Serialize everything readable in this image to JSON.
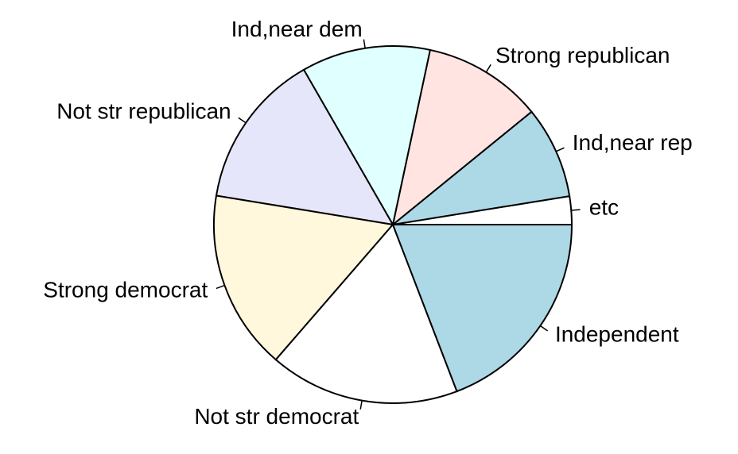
{
  "chart_data": {
    "type": "pie",
    "categories": [
      "etc",
      "Ind,near rep",
      "Strong republican",
      "Ind,near dem",
      "Not str republican",
      "Strong democrat",
      "Not str democrat",
      "Independent"
    ],
    "values": [
      548,
      1791,
      2314,
      2499,
      3032,
      3490,
      3690,
      4119
    ],
    "colors": [
      "#ffffff",
      "#add8e6",
      "#ffe4e1",
      "#e0ffff",
      "#e6e6fa",
      "#fff8dc",
      "#ffffff",
      "#add8e6"
    ],
    "direction": "counterclockwise"
  }
}
